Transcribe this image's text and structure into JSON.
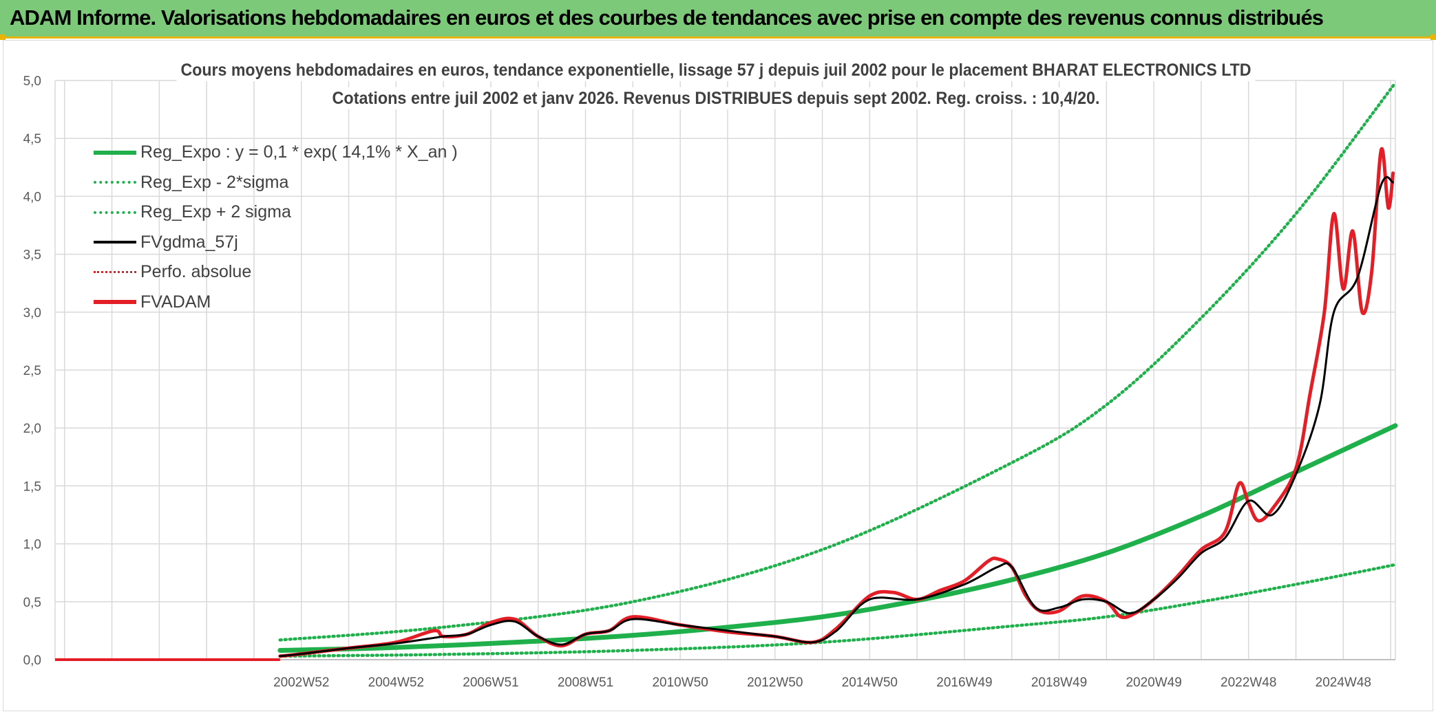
{
  "banner": {
    "title": "ADAM Informe. Valorisations hebdomadaires en euros et des courbes de tendances avec prise en compte des revenus connus distribués"
  },
  "colors": {
    "banner_bg": "#7dc97a",
    "accent": "#e8b400",
    "reg_green": "#1fb04c",
    "adam_red": "#e41e26",
    "gdma_black": "#000000",
    "grid": "#d9d9d9"
  },
  "chart_data": {
    "type": "line",
    "title_line1": "Cours moyens hebdomadaires en euros, tendance exponentielle, lissage 57 j depuis juil 2002 pour le placement BHARAT ELECTRONICS LTD",
    "title_line2": "Cotations entre juil 2002  et janv 2026. Revenus DISTRIBUES depuis sept 2002.  Reg. croiss. : 10,4/20.",
    "xlabel": "",
    "ylabel": "",
    "x_tick_labels": [
      "2002W52",
      "2004W52",
      "2006W51",
      "2008W51",
      "2010W50",
      "2012W50",
      "2014W50",
      "2016W49",
      "2018W49",
      "2020W49",
      "2022W48",
      "2024W48"
    ],
    "x_tick_years": [
      2003,
      2005,
      2007,
      2009,
      2011,
      2013,
      2015,
      2017,
      2019,
      2021,
      2023,
      2025
    ],
    "y_tick_labels": [
      "0,0",
      "0,5",
      "1,0",
      "1,5",
      "2,0",
      "2,5",
      "3,0",
      "3,5",
      "4,0",
      "4,5",
      "5,0"
    ],
    "ylim": [
      0,
      5
    ],
    "xlim": [
      1997.8,
      2026.1
    ],
    "data_start": 2002.55,
    "grid": true,
    "legend_position": "top-left",
    "series": [
      {
        "name": "Reg_Expo : y = 0,1 * exp( 14,1% *  X_an )",
        "style": "solid-thick-green",
        "x": [
          2002.55,
          2005,
          2008,
          2010,
          2012,
          2014,
          2016,
          2018,
          2020,
          2022,
          2024,
          2026.1
        ],
        "values": [
          0.08,
          0.105,
          0.16,
          0.21,
          0.28,
          0.37,
          0.51,
          0.69,
          0.92,
          1.24,
          1.62,
          2.02
        ]
      },
      {
        "name": "Reg_Exp - 2*sigma",
        "style": "dotted-green",
        "x": [
          2002.55,
          2006,
          2010,
          2014,
          2018,
          2020,
          2022,
          2024,
          2026.1
        ],
        "values": [
          0.03,
          0.045,
          0.08,
          0.15,
          0.29,
          0.37,
          0.5,
          0.65,
          0.82
        ]
      },
      {
        "name": "Reg_Exp + 2 sigma",
        "style": "dotted-green",
        "x": [
          2002.55,
          2006,
          2010,
          2014,
          2018,
          2020,
          2022,
          2024,
          2026.1
        ],
        "values": [
          0.17,
          0.28,
          0.5,
          0.95,
          1.7,
          2.2,
          2.95,
          3.85,
          4.98
        ]
      },
      {
        "name": "FVgdma_57j",
        "style": "solid-black",
        "x": [
          2002.55,
          2003,
          2004,
          2005,
          2006,
          2006.5,
          2007,
          2007.5,
          2008,
          2008.5,
          2009,
          2009.5,
          2010,
          2011,
          2012,
          2013,
          2013.8,
          2014.3,
          2015,
          2016,
          2017,
          2017.7,
          2018,
          2018.5,
          2019,
          2019.5,
          2020,
          2020.5,
          2021,
          2021.5,
          2022,
          2022.5,
          2023,
          2023.5,
          2024,
          2024.5,
          2024.8,
          2025.3,
          2025.8,
          2026.05
        ],
        "values": [
          0.03,
          0.05,
          0.1,
          0.14,
          0.2,
          0.22,
          0.3,
          0.33,
          0.2,
          0.13,
          0.22,
          0.25,
          0.35,
          0.3,
          0.25,
          0.2,
          0.15,
          0.25,
          0.52,
          0.52,
          0.65,
          0.8,
          0.8,
          0.45,
          0.45,
          0.52,
          0.5,
          0.4,
          0.52,
          0.7,
          0.92,
          1.05,
          1.37,
          1.25,
          1.6,
          2.2,
          3.0,
          3.3,
          4.1,
          4.12
        ]
      },
      {
        "name": "Perfo. absolue",
        "style": "dotted-red",
        "x": [],
        "values": []
      },
      {
        "name": "FVADAM",
        "style": "solid-thick-red",
        "x": [
          2002.55,
          2003,
          2004,
          2005,
          2005.8,
          2006,
          2006.5,
          2007,
          2007.5,
          2008,
          2008.5,
          2009,
          2009.5,
          2010,
          2011,
          2012,
          2013,
          2013.8,
          2014.3,
          2015,
          2015.5,
          2016,
          2016.5,
          2017,
          2017.5,
          2017.7,
          2018,
          2018.3,
          2018.6,
          2019,
          2019.5,
          2020,
          2020.3,
          2020.6,
          2021,
          2021.5,
          2022,
          2022.5,
          2022.8,
          2023,
          2023.2,
          2023.5,
          2024,
          2024.3,
          2024.6,
          2024.8,
          2025,
          2025.2,
          2025.4,
          2025.6,
          2025.8,
          2025.95,
          2026.05
        ],
        "values": [
          0.03,
          0.05,
          0.1,
          0.15,
          0.25,
          0.2,
          0.22,
          0.32,
          0.35,
          0.2,
          0.12,
          0.22,
          0.25,
          0.37,
          0.3,
          0.24,
          0.2,
          0.15,
          0.27,
          0.55,
          0.58,
          0.52,
          0.6,
          0.68,
          0.85,
          0.87,
          0.8,
          0.55,
          0.42,
          0.42,
          0.55,
          0.5,
          0.37,
          0.4,
          0.52,
          0.72,
          0.95,
          1.1,
          1.52,
          1.35,
          1.2,
          1.3,
          1.65,
          2.3,
          3.0,
          3.85,
          3.2,
          3.7,
          3.0,
          3.35,
          4.4,
          3.9,
          4.2
        ]
      }
    ]
  }
}
